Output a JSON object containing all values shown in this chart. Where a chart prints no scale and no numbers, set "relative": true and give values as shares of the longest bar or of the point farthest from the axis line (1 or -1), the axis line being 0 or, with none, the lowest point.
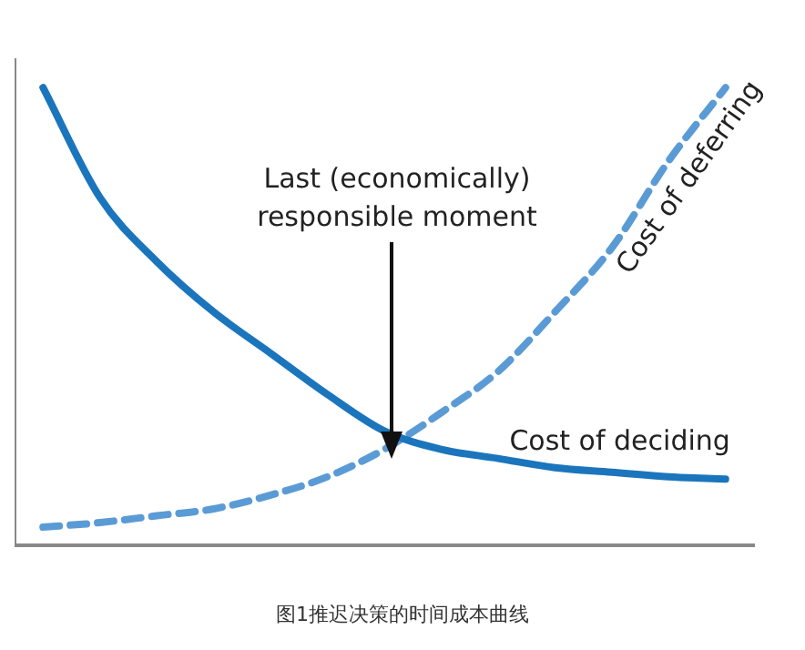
{
  "chart_data": {
    "type": "line",
    "relative": true,
    "categories": [
      null,
      null,
      null,
      null,
      null,
      null,
      null,
      null,
      null,
      null,
      null,
      null,
      null
    ],
    "series": [
      {
        "name": "Cost of deciding",
        "color": "#1b75bc",
        "line_style": "solid",
        "values": [
          1.0,
          0.76,
          0.62,
          0.51,
          0.42,
          0.33,
          0.25,
          0.21,
          0.19,
          0.17,
          0.16,
          0.15,
          0.145
        ]
      },
      {
        "name": "Cost of deferring",
        "color": "#5b9bd5",
        "line_style": "dashed",
        "values": [
          0.04,
          0.05,
          0.065,
          0.08,
          0.11,
          0.15,
          0.21,
          0.29,
          0.38,
          0.51,
          0.65,
          0.84,
          1.0
        ]
      }
    ],
    "marker": "none",
    "grid": false,
    "legend": false,
    "annotations": [
      "Last (economically) responsible moment",
      "图1推迟决策的时间成本曲线"
    ]
  }
}
